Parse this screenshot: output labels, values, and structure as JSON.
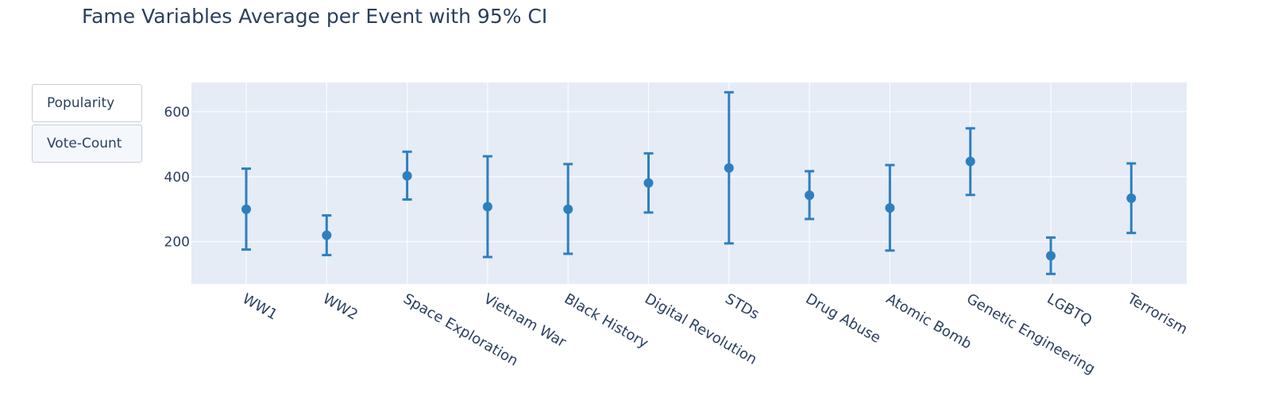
{
  "title": "Fame Variables Average per Event with 95% CI",
  "buttons": [
    "Popularity",
    "Vote-Count"
  ],
  "active_button": 1,
  "colors": {
    "marker": "#2e7fbf",
    "plot_bg": "#e5ecf6",
    "grid": "#ffffff",
    "text": "#2a3f5f"
  },
  "chart_data": {
    "type": "scatter",
    "error_bars": true,
    "categories": [
      "WW1",
      "WW2",
      "Space Exploration",
      "Vietnam War",
      "Black History",
      "Digital Revolution",
      "STDs",
      "Drug Abuse",
      "Atomic Bomb",
      "Genetic Engineering",
      "LGBTQ",
      "Terrorism"
    ],
    "values": [
      300,
      220,
      403,
      308,
      300,
      381,
      427,
      343,
      304,
      447,
      157,
      334
    ],
    "ci_low": [
      176,
      159,
      330,
      153,
      163,
      290,
      195,
      270,
      173,
      344,
      101,
      227
    ],
    "ci_high": [
      425,
      281,
      477,
      463,
      439,
      472,
      660,
      417,
      436,
      549,
      213,
      441
    ],
    "ylim": [
      70,
      690
    ],
    "yticks": [
      200,
      400,
      600
    ],
    "xlabel": "",
    "ylabel": "",
    "grid": true
  }
}
